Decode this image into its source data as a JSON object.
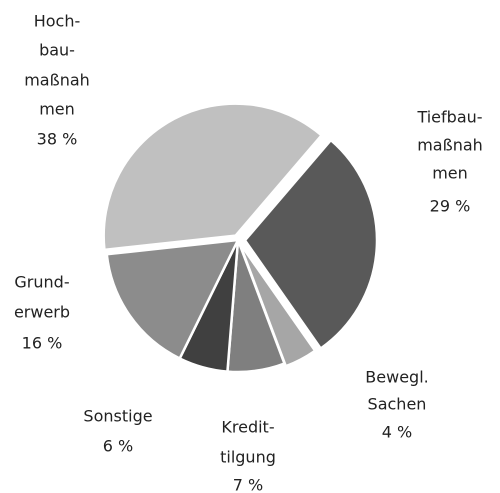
{
  "chart_data": {
    "type": "pie",
    "categories": [
      [
        "Tiefbau-",
        "maßnah",
        "men"
      ],
      [
        "Bewegl.",
        "Sachen"
      ],
      [
        "Kredit-",
        "tilgung"
      ],
      [
        "Sonstige"
      ],
      [
        "Grund-",
        "erwerb"
      ],
      [
        "Hoch-",
        "bau-",
        "maßnah",
        "men"
      ]
    ],
    "values": [
      29,
      4,
      7,
      6,
      16,
      38
    ],
    "value_labels": [
      "29 %",
      "4 %",
      "7 %",
      "6 %",
      "16 %",
      "38 %"
    ],
    "colors": [
      "#595959",
      "#a6a6a6",
      "#7f7f7f",
      "#404040",
      "#8c8c8c",
      "#c0c0c0"
    ]
  }
}
